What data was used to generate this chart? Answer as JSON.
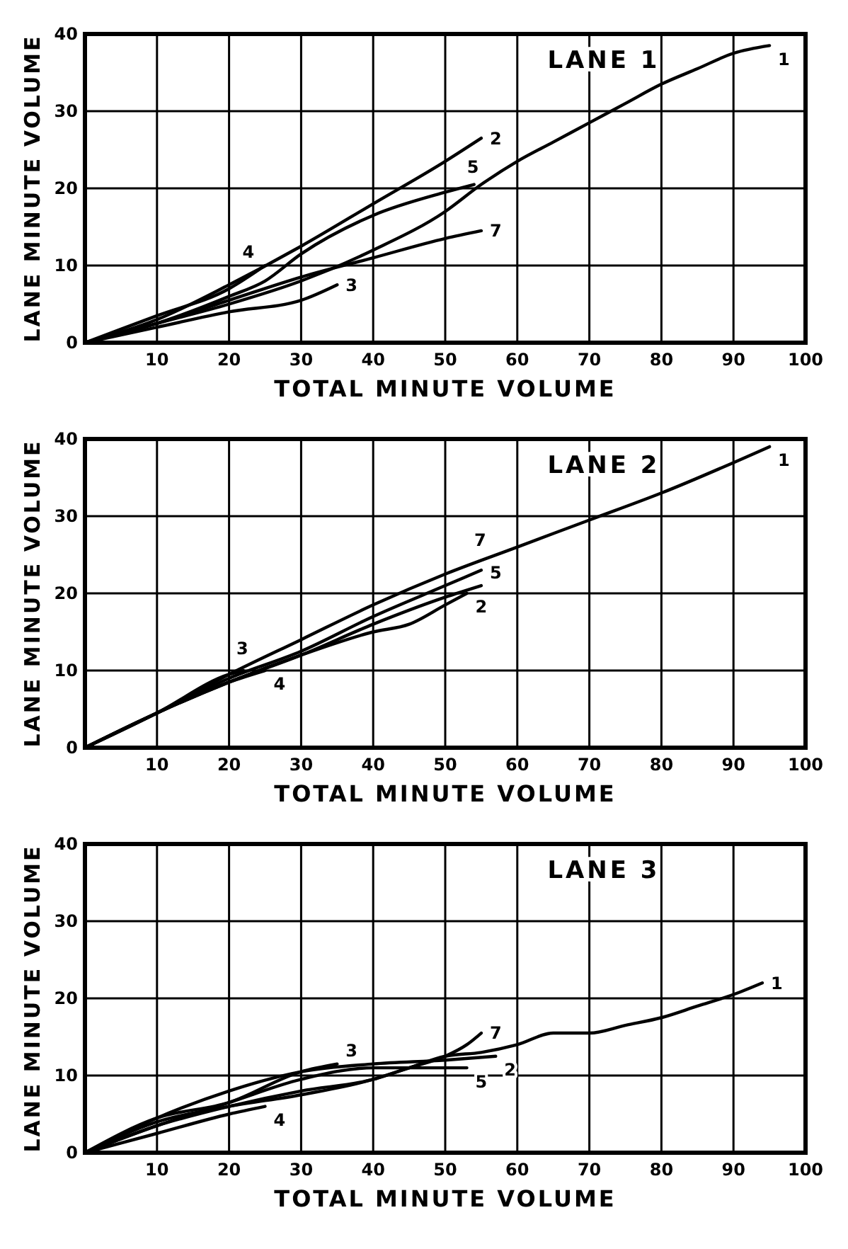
{
  "chart_data": [
    {
      "type": "line",
      "title": "LANE 1",
      "xlabel": "TOTAL MINUTE VOLUME",
      "ylabel": "LANE MINUTE VOLUME",
      "xlim": [
        0,
        100
      ],
      "ylim": [
        0,
        40
      ],
      "xticks": [
        10,
        20,
        30,
        40,
        50,
        60,
        70,
        80,
        90,
        100
      ],
      "yticks": [
        0,
        10,
        20,
        30,
        40
      ],
      "grid": true,
      "series": [
        {
          "name": "1",
          "color": "#000000",
          "x": [
            0,
            10,
            20,
            30,
            40,
            50,
            55,
            60,
            65,
            70,
            75,
            80,
            85,
            90,
            95
          ],
          "values": [
            0,
            2.5,
            5,
            8,
            12,
            17,
            20.5,
            23.5,
            26,
            28.5,
            31,
            33.5,
            35.5,
            37.5,
            38.5
          ]
        },
        {
          "name": "2",
          "color": "#000000",
          "x": [
            0,
            10,
            20,
            30,
            40,
            50,
            55
          ],
          "values": [
            0,
            3,
            7.5,
            12.5,
            18,
            23.5,
            26.5
          ]
        },
        {
          "name": "3",
          "color": "#000000",
          "x": [
            0,
            10,
            20,
            30,
            35
          ],
          "values": [
            0,
            2,
            4,
            5.5,
            7.5
          ]
        },
        {
          "name": "4",
          "color": "#000000",
          "x": [
            0,
            10,
            20,
            25
          ],
          "values": [
            0,
            3.5,
            7,
            10
          ]
        },
        {
          "name": "5",
          "color": "#000000",
          "x": [
            0,
            10,
            20,
            25,
            30,
            40,
            50,
            54
          ],
          "values": [
            0,
            2.5,
            6,
            8,
            11.5,
            16.5,
            19.5,
            20.5
          ]
        },
        {
          "name": "7",
          "color": "#000000",
          "x": [
            0,
            10,
            20,
            30,
            40,
            50,
            55
          ],
          "values": [
            0,
            2.5,
            5.5,
            8.5,
            11,
            13.5,
            14.5
          ]
        }
      ]
    },
    {
      "type": "line",
      "title": "LANE 2",
      "xlabel": "TOTAL MINUTE VOLUME",
      "ylabel": "LANE MINUTE VOLUME",
      "xlim": [
        0,
        100
      ],
      "ylim": [
        0,
        40
      ],
      "xticks": [
        10,
        20,
        30,
        40,
        50,
        60,
        70,
        80,
        90,
        100
      ],
      "yticks": [
        0,
        10,
        20,
        30,
        40
      ],
      "grid": true,
      "series": [
        {
          "name": "1",
          "color": "#000000",
          "x": [
            0,
            10,
            20,
            30,
            40,
            50,
            60,
            70,
            80,
            95
          ],
          "values": [
            0,
            4.5,
            9.5,
            14,
            18.5,
            22.5,
            26,
            29.5,
            33,
            39
          ]
        },
        {
          "name": "2",
          "color": "#000000",
          "x": [
            0,
            10,
            20,
            30,
            40,
            45,
            50,
            53
          ],
          "values": [
            0,
            4.5,
            8.5,
            12,
            15,
            16,
            18.5,
            20
          ]
        },
        {
          "name": "3",
          "color": "#000000",
          "x": [
            0,
            10,
            20,
            22
          ],
          "values": [
            0,
            4.5,
            9.5,
            10
          ]
        },
        {
          "name": "4",
          "color": "#000000",
          "x": [
            0,
            10,
            20,
            25
          ],
          "values": [
            0,
            4.5,
            8.5,
            10
          ]
        },
        {
          "name": "5",
          "color": "#000000",
          "x": [
            0,
            10,
            20,
            30,
            40,
            50,
            55
          ],
          "values": [
            0,
            4.5,
            8.5,
            12,
            16,
            19.5,
            21
          ]
        },
        {
          "name": "7",
          "color": "#000000",
          "x": [
            0,
            10,
            20,
            30,
            40,
            50,
            55
          ],
          "values": [
            0,
            4.5,
            9,
            12.5,
            17,
            21,
            23
          ]
        }
      ]
    },
    {
      "type": "line",
      "title": "LANE 3",
      "xlabel": "TOTAL MINUTE VOLUME",
      "ylabel": "LANE MINUTE VOLUME",
      "xlim": [
        0,
        100
      ],
      "ylim": [
        0,
        40
      ],
      "xticks": [
        10,
        20,
        30,
        40,
        50,
        60,
        70,
        80,
        90,
        100
      ],
      "yticks": [
        0,
        10,
        20,
        30,
        40
      ],
      "grid": true,
      "series": [
        {
          "name": "1",
          "color": "#000000",
          "x": [
            0,
            10,
            20,
            30,
            40,
            45,
            50,
            55,
            60,
            65,
            70,
            75,
            80,
            85,
            90,
            94
          ],
          "values": [
            0,
            3.5,
            6,
            8,
            9.5,
            11,
            12.5,
            13,
            14,
            15.5,
            15.5,
            16.5,
            17.5,
            19,
            20.5,
            22
          ]
        },
        {
          "name": "2",
          "color": "#000000",
          "x": [
            0,
            10,
            20,
            30,
            40,
            50,
            57
          ],
          "values": [
            0,
            4.5,
            8,
            10.5,
            11.5,
            12,
            12.5
          ]
        },
        {
          "name": "3",
          "color": "#000000",
          "x": [
            0,
            10,
            20,
            30,
            35
          ],
          "values": [
            0,
            4.5,
            6.5,
            10.5,
            11.5
          ]
        },
        {
          "name": "4",
          "color": "#000000",
          "x": [
            0,
            10,
            20,
            25
          ],
          "values": [
            0,
            2.5,
            5,
            6
          ]
        },
        {
          "name": "5",
          "color": "#000000",
          "x": [
            0,
            10,
            20,
            30,
            40,
            50,
            53
          ],
          "values": [
            0,
            3.5,
            6.5,
            9.5,
            11,
            11,
            11
          ]
        },
        {
          "name": "7",
          "color": "#000000",
          "x": [
            0,
            10,
            20,
            30,
            40,
            45,
            50,
            53,
            55
          ],
          "values": [
            0,
            4,
            6,
            7.5,
            9.5,
            11,
            12.5,
            14,
            15.5
          ]
        }
      ]
    }
  ]
}
